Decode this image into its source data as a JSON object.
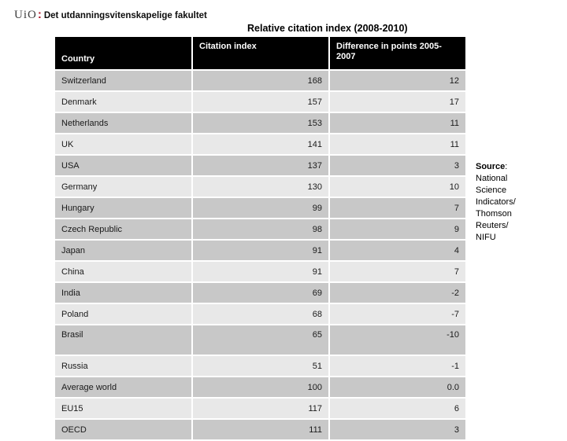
{
  "logo": {
    "uio": "UiO",
    "separator": ":",
    "faculty": "Det utdanningsvitenskapelige fakultet"
  },
  "title": "Relative citation index (2008-2010)",
  "table": {
    "columns": [
      "Country",
      "Citation index",
      "Difference in points 2005-2007"
    ],
    "rows": [
      {
        "country": "Switzerland",
        "index": "168",
        "diff": "12"
      },
      {
        "country": "Denmark",
        "index": "157",
        "diff": "17"
      },
      {
        "country": "Netherlands",
        "index": "153",
        "diff": "11"
      },
      {
        "country": "UK",
        "index": "141",
        "diff": "11"
      },
      {
        "country": "USA",
        "index": "137",
        "diff": "3"
      },
      {
        "country": "Germany",
        "index": "130",
        "diff": "10"
      },
      {
        "country": "Hungary",
        "index": "99",
        "diff": "7"
      },
      {
        "country": "Czech Republic",
        "index": "98",
        "diff": "9"
      },
      {
        "country": "Japan",
        "index": "91",
        "diff": "4"
      },
      {
        "country": "China",
        "index": "91",
        "diff": "7"
      },
      {
        "country": "India",
        "index": "69",
        "diff": "-2"
      },
      {
        "country": "Poland",
        "index": "68",
        "diff": "-7"
      },
      {
        "country": "Brasil",
        "index": "65",
        "diff": "-10"
      },
      {
        "country": "Russia",
        "index": "51",
        "diff": "-1"
      },
      {
        "country": "Average world",
        "index": "100",
        "diff": "0.0"
      },
      {
        "country": "EU15",
        "index": "117",
        "diff": "6"
      },
      {
        "country": "OECD",
        "index": "111",
        "diff": "3"
      }
    ]
  },
  "source": {
    "label": "Source",
    "colon": ":",
    "lines": [
      "National",
      "Science",
      "Indicators/",
      "Thomson",
      "Reuters/",
      "NIFU"
    ]
  },
  "colors": {
    "header_bg": "#000000",
    "row_dark": "#c8c8c8",
    "row_light": "#e8e8e8",
    "logo_red": "#b01126"
  }
}
